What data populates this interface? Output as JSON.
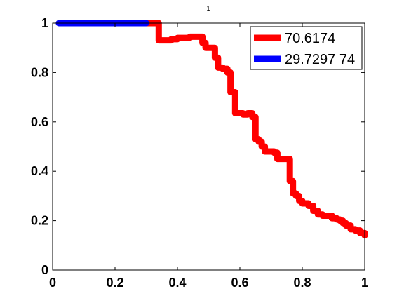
{
  "chart_data": {
    "type": "line",
    "title": "1",
    "xlabel": "",
    "ylabel": "",
    "xlim": [
      0,
      1
    ],
    "ylim": [
      0,
      1
    ],
    "x_ticks": [
      0,
      0.2,
      0.4,
      0.6,
      0.8,
      1
    ],
    "y_ticks": [
      0,
      0.2,
      0.4,
      0.6,
      0.8,
      1
    ],
    "x_tick_labels": [
      "0",
      "0.2",
      "0.4",
      "0.6",
      "0.8",
      "1"
    ],
    "y_tick_labels": [
      "0",
      "0.2",
      "0.4",
      "0.6",
      "0.8",
      "1"
    ],
    "grid": false,
    "legend_position": "top-right",
    "series": [
      {
        "name": "70.6174",
        "color": "#ff0000",
        "step": true,
        "x": [
          0.3,
          0.33,
          0.34,
          0.36,
          0.38,
          0.4,
          0.42,
          0.44,
          0.46,
          0.47,
          0.48,
          0.49,
          0.5,
          0.52,
          0.53,
          0.545,
          0.56,
          0.57,
          0.585,
          0.6,
          0.61,
          0.625,
          0.64,
          0.65,
          0.66,
          0.67,
          0.68,
          0.7,
          0.71,
          0.72,
          0.735,
          0.755,
          0.76,
          0.77,
          0.78,
          0.79,
          0.8,
          0.81,
          0.82,
          0.835,
          0.85,
          0.865,
          0.88,
          0.895,
          0.91,
          0.92,
          0.93,
          0.94,
          0.955,
          0.97,
          0.985,
          1.0
        ],
        "y": [
          1.0,
          1.0,
          0.93,
          0.93,
          0.935,
          0.94,
          0.94,
          0.945,
          0.945,
          0.945,
          0.92,
          0.9,
          0.9,
          0.86,
          0.82,
          0.815,
          0.8,
          0.72,
          0.635,
          0.635,
          0.63,
          0.635,
          0.62,
          0.53,
          0.52,
          0.5,
          0.48,
          0.48,
          0.475,
          0.45,
          0.45,
          0.45,
          0.36,
          0.31,
          0.3,
          0.28,
          0.27,
          0.27,
          0.26,
          0.24,
          0.225,
          0.22,
          0.22,
          0.21,
          0.205,
          0.2,
          0.19,
          0.18,
          0.165,
          0.16,
          0.15,
          0.14
        ]
      },
      {
        "name": "29.7297 74",
        "color": "#0000ff",
        "step": true,
        "x": [
          0.02,
          0.3
        ],
        "y": [
          1.0,
          1.0
        ]
      }
    ]
  }
}
